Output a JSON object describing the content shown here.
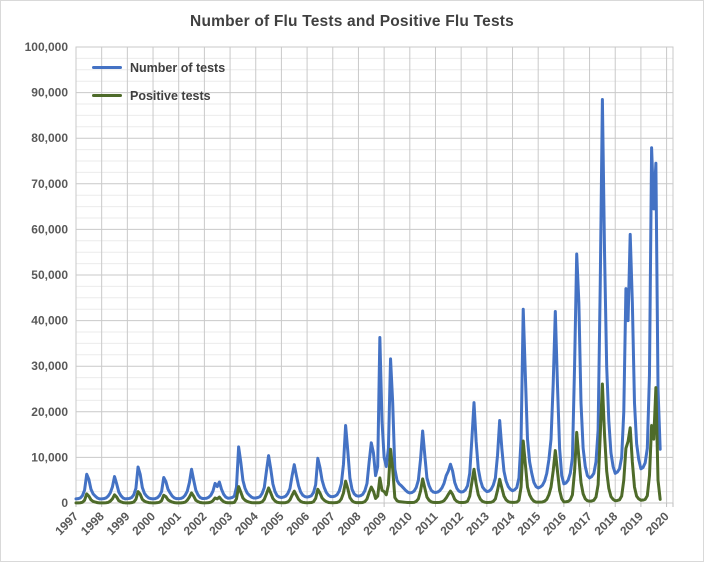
{
  "title": "Number of Flu Tests and Positive Flu Tests",
  "legend": {
    "position": "top-left-inside",
    "items": [
      {
        "label": "Number of tests",
        "color": "#4472C4"
      },
      {
        "label": "Positive tests",
        "color": "#4E6B2A"
      }
    ]
  },
  "colors": {
    "title_text": "#404040",
    "axis_text": "#595959",
    "grid_major": "#C9C9C9",
    "grid_minor": "#EBEBEB",
    "plot_border": "#C9C9C9",
    "tick_mark": "#BFBFBF"
  },
  "chart_data": {
    "type": "line",
    "title": "Number of Flu Tests and Positive Flu Tests",
    "frequency": "monthly",
    "points_start": "1997-07",
    "points_end": "2020-04",
    "axis_months": 279,
    "x_tick_labels": [
      "1997",
      "1998",
      "1999",
      "2000",
      "2001",
      "2002",
      "2003",
      "2004",
      "2005",
      "2006",
      "2007",
      "2008",
      "2009",
      "2010",
      "2011",
      "2012",
      "2013",
      "2014",
      "2015",
      "2016",
      "2017",
      "2018",
      "2019",
      "2020"
    ],
    "y_tick_labels": [
      "0",
      "10,000",
      "20,000",
      "30,000",
      "40,000",
      "50,000",
      "60,000",
      "70,000",
      "80,000",
      "90,000",
      "100,000"
    ],
    "ylim": [
      0,
      100000
    ],
    "y_major_step": 10000,
    "y_minor_step": 2500,
    "grid": true,
    "legend_position": "top-left-inside",
    "series": [
      {
        "name": "Number of tests",
        "color": "#4472C4",
        "stroke_width": 3,
        "values": [
          900,
          950,
          1100,
          1600,
          2800,
          6300,
          5200,
          3000,
          2000,
          1500,
          1100,
          900,
          900,
          950,
          1100,
          1500,
          2200,
          3500,
          5800,
          4200,
          2400,
          1600,
          1100,
          900,
          950,
          1000,
          1200,
          1800,
          3200,
          7900,
          6300,
          3400,
          2100,
          1500,
          1100,
          950,
          900,
          950,
          1150,
          1600,
          2500,
          5600,
          4700,
          3000,
          2200,
          1500,
          1100,
          950,
          950,
          1000,
          1200,
          1700,
          2600,
          4500,
          7400,
          5000,
          2800,
          1800,
          1200,
          1000,
          1000,
          1050,
          1250,
          1700,
          2600,
          4300,
          3600,
          4600,
          3000,
          1900,
          1300,
          1050,
          1100,
          1200,
          1500,
          3500,
          12300,
          9000,
          5000,
          3200,
          2200,
          1700,
          1300,
          1100,
          1100,
          1200,
          1400,
          2100,
          3400,
          7000,
          10400,
          7500,
          4200,
          2500,
          1600,
          1300,
          1200,
          1300,
          1500,
          2100,
          3200,
          6000,
          8400,
          6000,
          3800,
          2400,
          1700,
          1400,
          1300,
          1400,
          1600,
          2300,
          4000,
          9800,
          7800,
          5000,
          3400,
          2300,
          1700,
          1400,
          1400,
          1500,
          1800,
          2600,
          4200,
          8500,
          17000,
          11500,
          5500,
          3000,
          2000,
          1600,
          1500,
          1600,
          1900,
          2700,
          4300,
          9000,
          13200,
          11000,
          6000,
          8000,
          36300,
          18000,
          10000,
          8000,
          12000,
          31600,
          22000,
          7500,
          5000,
          4200,
          3800,
          3300,
          2800,
          2400,
          2200,
          2300,
          2600,
          3400,
          5000,
          9500,
          15800,
          10500,
          5500,
          3800,
          2800,
          2400,
          2300,
          2400,
          2700,
          3300,
          4300,
          6000,
          7000,
          8500,
          7000,
          4500,
          3200,
          2600,
          2400,
          2500,
          2900,
          3800,
          6500,
          14000,
          22000,
          13500,
          7500,
          5000,
          3500,
          2900,
          2500,
          2600,
          3000,
          3900,
          5500,
          10500,
          18100,
          12000,
          7000,
          4800,
          3600,
          3000,
          2700,
          2900,
          3400,
          5500,
          14000,
          42500,
          28000,
          14000,
          9000,
          6500,
          4500,
          3600,
          3300,
          3500,
          3900,
          4800,
          6500,
          9500,
          14000,
          26000,
          42000,
          26000,
          12000,
          6000,
          4200,
          4400,
          5000,
          6500,
          10000,
          30000,
          54600,
          44000,
          22000,
          12000,
          8000,
          6000,
          5500,
          5800,
          6500,
          9000,
          16000,
          48000,
          88500,
          55000,
          30000,
          18000,
          11000,
          8000,
          6500,
          6800,
          7500,
          10000,
          20000,
          47000,
          40000,
          58900,
          44000,
          22000,
          13000,
          9500,
          7500,
          7800,
          8800,
          12000,
          28000,
          77900,
          64500,
          74500,
          25000,
          11800
        ]
      },
      {
        "name": "Positive tests",
        "color": "#4E6B2A",
        "stroke_width": 3,
        "values": [
          30,
          30,
          60,
          150,
          600,
          2000,
          1500,
          700,
          350,
          200,
          80,
          40,
          30,
          40,
          60,
          120,
          400,
          900,
          1800,
          1300,
          500,
          250,
          90,
          40,
          40,
          40,
          80,
          200,
          800,
          2500,
          1900,
          800,
          400,
          200,
          90,
          50,
          30,
          40,
          70,
          150,
          500,
          1700,
          1400,
          700,
          400,
          200,
          80,
          40,
          40,
          40,
          80,
          180,
          600,
          1300,
          2200,
          1500,
          600,
          300,
          100,
          50,
          40,
          50,
          80,
          180,
          500,
          1100,
          900,
          1300,
          700,
          300,
          100,
          50,
          50,
          60,
          120,
          900,
          3600,
          2400,
          1100,
          600,
          350,
          180,
          90,
          60,
          50,
          60,
          90,
          250,
          800,
          2000,
          3300,
          2200,
          1000,
          450,
          150,
          80,
          50,
          60,
          90,
          220,
          700,
          1700,
          2600,
          1700,
          800,
          350,
          150,
          80,
          60,
          70,
          100,
          280,
          1000,
          3000,
          2200,
          1100,
          600,
          300,
          120,
          70,
          60,
          80,
          120,
          300,
          900,
          2200,
          4800,
          3200,
          1200,
          500,
          180,
          90,
          70,
          80,
          120,
          300,
          900,
          2300,
          3500,
          2600,
          1000,
          1500,
          5500,
          2800,
          2500,
          1800,
          4000,
          11800,
          7500,
          1200,
          500,
          300,
          250,
          200,
          150,
          100,
          100,
          110,
          150,
          350,
          900,
          2600,
          5300,
          3300,
          1300,
          600,
          250,
          130,
          100,
          110,
          140,
          250,
          500,
          1100,
          1900,
          2600,
          1900,
          800,
          350,
          150,
          110,
          120,
          160,
          400,
          1500,
          4500,
          7400,
          4200,
          1800,
          800,
          350,
          180,
          120,
          130,
          170,
          350,
          900,
          2800,
          5200,
          3300,
          1500,
          700,
          300,
          160,
          130,
          150,
          200,
          600,
          3500,
          13600,
          8500,
          3500,
          1800,
          900,
          400,
          200,
          180,
          190,
          230,
          400,
          800,
          1800,
          3500,
          7000,
          11500,
          7000,
          2800,
          900,
          250,
          270,
          350,
          700,
          1800,
          7000,
          15500,
          10000,
          4500,
          2000,
          900,
          500,
          400,
          450,
          600,
          1300,
          4000,
          15000,
          26100,
          15000,
          7000,
          3200,
          1400,
          800,
          500,
          550,
          700,
          1500,
          5000,
          12000,
          13500,
          16500,
          9000,
          3500,
          1500,
          900,
          600,
          650,
          800,
          1600,
          6000,
          17000,
          14000,
          25300,
          5000,
          800
        ]
      }
    ]
  }
}
